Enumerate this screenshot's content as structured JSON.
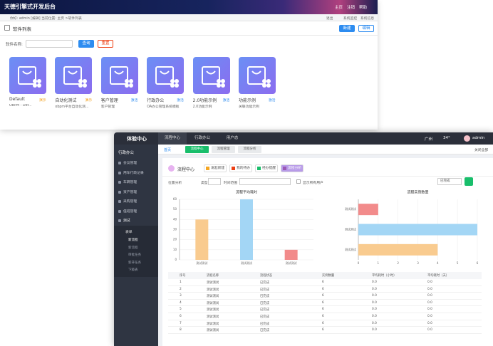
{
  "admin": {
    "title": "天德引擎式开发后台",
    "top_links": [
      "主页",
      "注销",
      "帮助"
    ],
    "greeting": "你好: admin [编辑]   当前位置: 主页 >软件列表",
    "tools": [
      "退出",
      "系统监控",
      "系统信息"
    ],
    "page_title": "软件列表",
    "buttons": [
      "新建",
      "编辑"
    ],
    "search_label": "软件名称:",
    "search_buttons": [
      "查询",
      "重置"
    ],
    "cards": [
      {
        "name": "Default",
        "tag": "演示",
        "desc": "OBPM - Def..."
      },
      {
        "name": "自动化测试",
        "tag": "演示",
        "desc": "obpm平台自动化测..."
      },
      {
        "name": "客户管理",
        "tag": "激活",
        "desc": "客户管理"
      },
      {
        "name": "行政办公",
        "tag": "激活",
        "desc": "OA办公管理系统模板"
      },
      {
        "name": "2.0功能示例",
        "tag": "激活",
        "desc": "2.0功能示例"
      },
      {
        "name": "功能示例",
        "tag": "激活",
        "desc": "关联功能示例"
      }
    ]
  },
  "portal": {
    "brand": "体验中心",
    "nav": [
      "流程中心",
      "行政办公",
      "用户态"
    ],
    "city": "广州",
    "temp": "34°",
    "user": "admin",
    "side_title": "行政办公",
    "side": [
      "会议管理",
      "用车行政记录",
      "车辆管理",
      "资产管理",
      "采购管理",
      "值班管理",
      "测试"
    ],
    "sub": "表单",
    "subitems": [
      "新流程",
      "新流程",
      "审批任务",
      "新开任务",
      "下级表"
    ],
    "home": "首页",
    "tabs": [
      "流程中心",
      "流程管理",
      "流程分析"
    ],
    "close_all": "关闭全部",
    "heading": "流程中心",
    "actions": [
      "发起新建",
      "我的待办",
      "经办提醒",
      "流程分析"
    ],
    "filter": {
      "label": "位置分析",
      "type_label": "类型",
      "time_label": "时间范围",
      "checkbox": "显示所有用户",
      "status": "已完成"
    },
    "table": {
      "headers": [
        "序号",
        "流程名称",
        "流程状态",
        "实例数量",
        "平均耗时（小时）",
        "平均耗时（天）"
      ],
      "rows": [
        [
          "1",
          "测试测试",
          "已完成",
          "6",
          "0.0",
          "0.0"
        ],
        [
          "2",
          "测试测试",
          "已完成",
          "6",
          "0.0",
          "0.0"
        ],
        [
          "3",
          "测试测试",
          "已完成",
          "6",
          "0.0",
          "0.0"
        ],
        [
          "4",
          "测试测试",
          "已完成",
          "6",
          "0.0",
          "0.0"
        ],
        [
          "5",
          "测试测试",
          "已完成",
          "6",
          "0.0",
          "0.0"
        ],
        [
          "6",
          "测试测试",
          "已完成",
          "6",
          "0.0",
          "0.0"
        ],
        [
          "7",
          "测试测试",
          "已完成",
          "6",
          "0.0",
          "0.0"
        ],
        [
          "8",
          "测试测试",
          "已完成",
          "6",
          "0.0",
          "0.0"
        ]
      ]
    }
  },
  "chart_data": [
    {
      "type": "bar",
      "title": "流程平均耗时",
      "categories": [
        "测试测试",
        "测试测试",
        "测试测试"
      ],
      "values": [
        40,
        60,
        10
      ],
      "colors": [
        "#f9cb8f",
        "#a3d6f5",
        "#f28b8b"
      ],
      "ylim": [
        0,
        60
      ],
      "yticks": [
        0,
        10,
        20,
        30,
        40,
        50,
        60
      ],
      "grid": true
    },
    {
      "type": "barh",
      "title": "流程实例数量",
      "categories": [
        "测试测试",
        "测试测试",
        "测试测试"
      ],
      "values": [
        1,
        6,
        4
      ],
      "colors": [
        "#f28b8b",
        "#a3d6f5",
        "#f9cb8f"
      ],
      "xlim": [
        0,
        6
      ],
      "xticks": [
        0,
        1,
        2,
        3,
        4,
        5,
        6
      ],
      "grid": true
    }
  ]
}
